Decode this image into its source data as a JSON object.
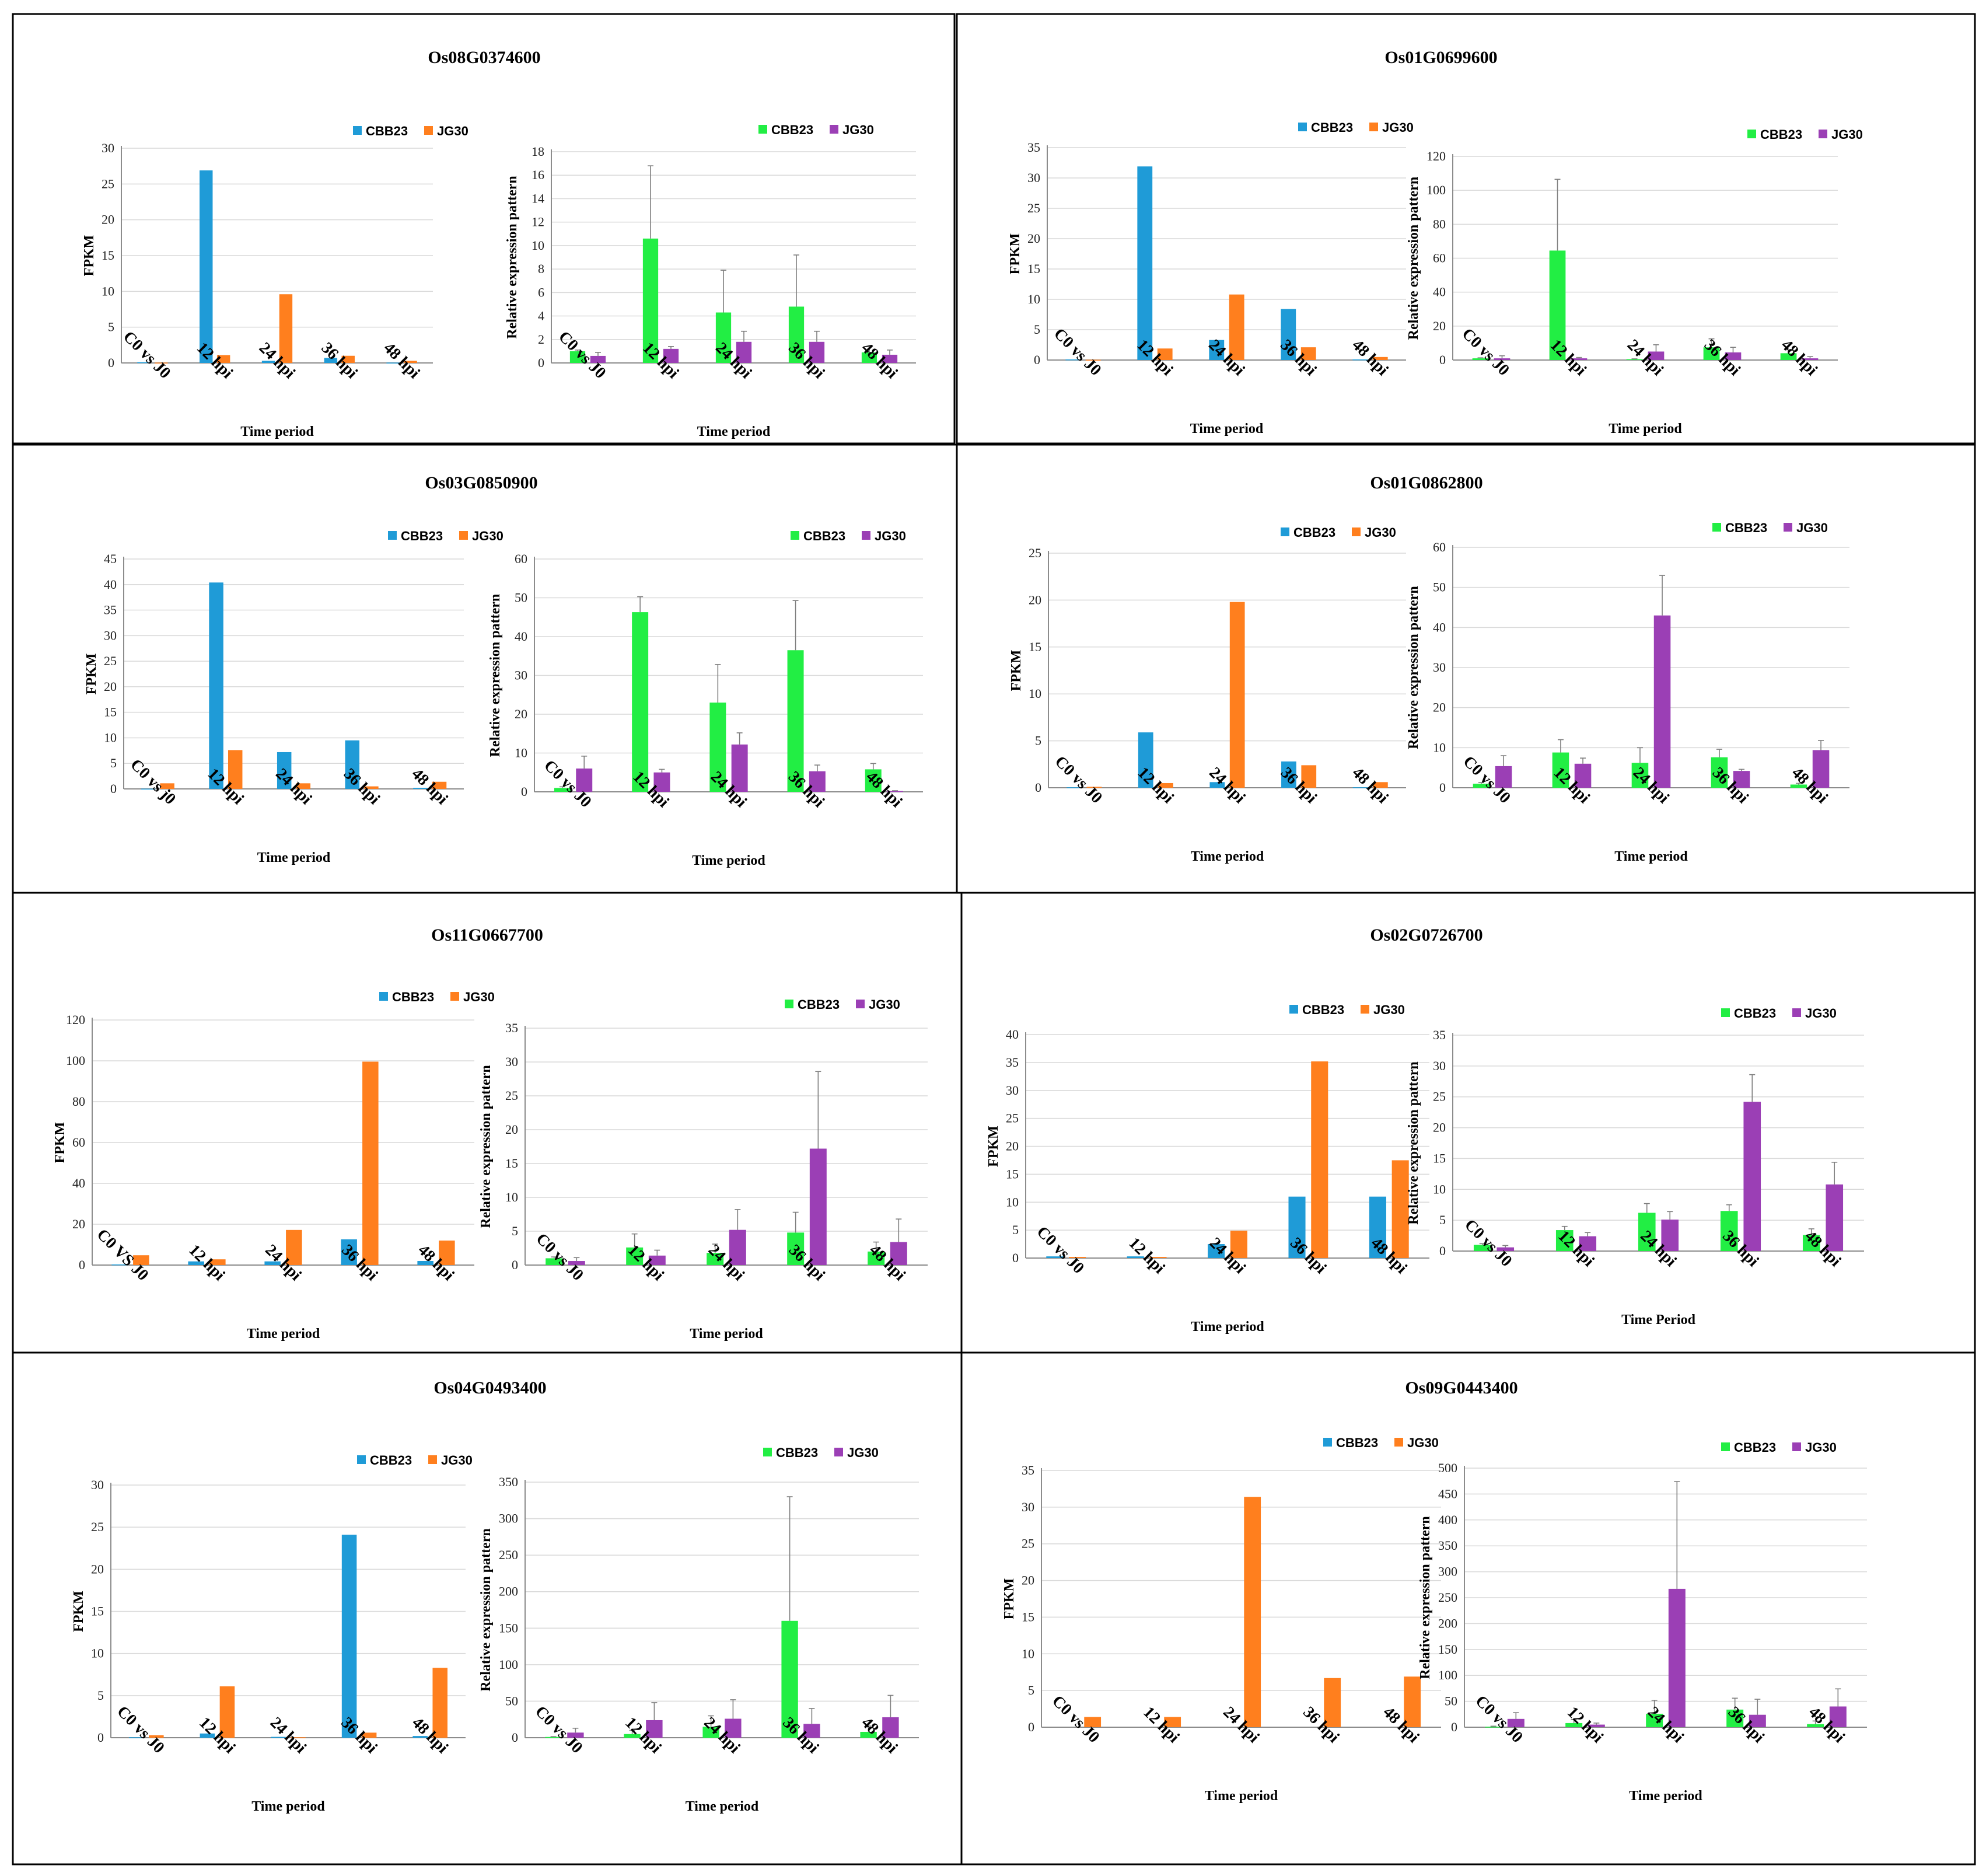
{
  "colors": {
    "cbb23_fpkm": "#1f9bd7",
    "jg30_fpkm": "#ff7f1e",
    "cbb23_rel": "#22ee44",
    "jg30_rel": "#9b3fb5"
  },
  "chart_data": [
    {
      "gene": "Os08G0374600",
      "fpkm": {
        "type": "bar",
        "title": "",
        "ylabel": "FPKM",
        "xlabel": "Time period",
        "ylim": [
          0,
          30
        ],
        "yticks": [
          0,
          5,
          10,
          15,
          20,
          25,
          30
        ],
        "categories": [
          "C0 vs J0",
          "12 hpi",
          "24 hpi",
          "36 hpi",
          "48 hpi"
        ],
        "series": [
          {
            "name": "CBB23",
            "values": [
              0.1,
              26.9,
              0.3,
              0.7,
              0.05
            ]
          },
          {
            "name": "JG30",
            "values": [
              0.05,
              1.1,
              9.6,
              1.0,
              0.3
            ]
          }
        ]
      },
      "rel": {
        "type": "bar",
        "title": "",
        "ylabel": "Relative expression pattern",
        "xlabel": "Time period",
        "ylim": [
          0,
          18
        ],
        "yticks": [
          0,
          2,
          4,
          6,
          8,
          10,
          12,
          14,
          16,
          18
        ],
        "categories": [
          "C0 vs J0",
          "12 hpi",
          "24 hpi",
          "36 hpi",
          "48 hpi"
        ],
        "series": [
          {
            "name": "CBB23",
            "values": [
              1.0,
              10.6,
              4.3,
              4.8,
              0.9
            ],
            "errors": [
              0.1,
              6.2,
              3.6,
              4.4,
              0.5
            ]
          },
          {
            "name": "JG30",
            "values": [
              0.6,
              1.2,
              1.8,
              1.8,
              0.7
            ],
            "errors": [
              0.3,
              0.2,
              0.9,
              0.9,
              0.4
            ]
          }
        ]
      }
    },
    {
      "gene": "Os01G0699600",
      "fpkm": {
        "type": "bar",
        "title": "",
        "ylabel": "FPKM",
        "xlabel": "Time period",
        "ylim": [
          0,
          35
        ],
        "yticks": [
          0,
          5,
          10,
          15,
          20,
          25,
          30,
          35
        ],
        "categories": [
          "C0 vs J0",
          "12 hpi",
          "24 hpi",
          "36 hpi",
          "48 hpi"
        ],
        "series": [
          {
            "name": "CBB23",
            "values": [
              0.1,
              31.9,
              3.3,
              8.4,
              0.1
            ]
          },
          {
            "name": "JG30",
            "values": [
              0.05,
              1.9,
              10.8,
              2.1,
              0.5
            ]
          }
        ]
      },
      "rel": {
        "type": "bar",
        "title": "",
        "ylabel": "Relative expression pattern",
        "xlabel": "Time period",
        "ylim": [
          0,
          120
        ],
        "yticks": [
          0,
          20,
          40,
          60,
          80,
          100,
          120
        ],
        "categories": [
          "C0 vs J0",
          "12 hpi",
          "24 hpi",
          "36 hpi",
          "48 hpi"
        ],
        "series": [
          {
            "name": "CBB23",
            "values": [
              1.0,
              64.5,
              0.5,
              7.5,
              4.0
            ],
            "errors": [
              0.3,
              42.0,
              0.2,
              5.0,
              2.0
            ]
          },
          {
            "name": "JG30",
            "values": [
              1.0,
              1.0,
              5.0,
              4.5,
              1.0
            ],
            "errors": [
              1.5,
              0.5,
              4.0,
              3.0,
              1.0
            ]
          }
        ]
      }
    },
    {
      "gene": "Os03G0850900",
      "fpkm": {
        "type": "bar",
        "title": "",
        "ylabel": "FPKM",
        "xlabel": "Time period",
        "ylim": [
          0,
          45
        ],
        "yticks": [
          0,
          5,
          10,
          15,
          20,
          25,
          30,
          35,
          40,
          45
        ],
        "categories": [
          "C0 vs j0",
          "12 hpi",
          "24 hpi",
          "36 hpi",
          "48 hpi"
        ],
        "series": [
          {
            "name": "CBB23",
            "values": [
              0.05,
              40.4,
              7.2,
              9.5,
              0.2
            ]
          },
          {
            "name": "JG30",
            "values": [
              1.1,
              7.6,
              1.1,
              0.5,
              1.4
            ]
          }
        ]
      },
      "rel": {
        "type": "bar",
        "title": "",
        "ylabel": "Relative expression pattern",
        "xlabel": "Time period",
        "ylim": [
          0,
          60
        ],
        "yticks": [
          0,
          10,
          20,
          30,
          40,
          50,
          60
        ],
        "categories": [
          "C0 vs J0",
          "12 hpi",
          "24 hpi",
          "36 hpi",
          "48 hpi"
        ],
        "series": [
          {
            "name": "CBB23",
            "values": [
              1.0,
              46.3,
              23.0,
              36.5,
              5.8
            ],
            "errors": [
              0.3,
              4.0,
              9.8,
              12.8,
              1.5
            ]
          },
          {
            "name": "JG30",
            "values": [
              6.0,
              5.0,
              12.2,
              5.3,
              0.2
            ],
            "errors": [
              3.2,
              0.8,
              3.0,
              1.6,
              0.1
            ]
          }
        ]
      }
    },
    {
      "gene": "Os01G0862800",
      "fpkm": {
        "type": "bar",
        "title": "",
        "ylabel": "FPKM",
        "xlabel": "Time period",
        "ylim": [
          0,
          25
        ],
        "yticks": [
          0,
          5,
          10,
          15,
          20,
          25
        ],
        "categories": [
          "C0 vs J0",
          "12 hpi",
          "24 hpi",
          "36 hpi",
          "48 hpi"
        ],
        "series": [
          {
            "name": "CBB23",
            "values": [
              0.05,
              5.9,
              0.6,
              2.8,
              0.05
            ]
          },
          {
            "name": "JG30",
            "values": [
              0.1,
              0.5,
              19.8,
              2.4,
              0.6
            ]
          }
        ]
      },
      "rel": {
        "type": "bar",
        "title": "",
        "ylabel": "Relative expression pattern",
        "xlabel": "Time period",
        "ylim": [
          0,
          60
        ],
        "yticks": [
          0,
          10,
          20,
          30,
          40,
          50,
          60
        ],
        "categories": [
          "C0 vs J0",
          "12 hpi",
          "24 hpi",
          "36 hpi",
          "48 hpi"
        ],
        "series": [
          {
            "name": "CBB23",
            "values": [
              1.0,
              8.8,
              6.2,
              7.6,
              0.8
            ],
            "errors": [
              0.3,
              3.2,
              3.8,
              2.0,
              0.3
            ]
          },
          {
            "name": "JG30",
            "values": [
              5.4,
              6.0,
              43.0,
              4.2,
              9.4
            ],
            "errors": [
              2.6,
              1.4,
              10.0,
              0.4,
              2.4
            ]
          }
        ]
      }
    },
    {
      "gene": "Os11G0667700",
      "fpkm": {
        "type": "bar",
        "title": "",
        "ylabel": "FPKM",
        "xlabel": "Time period",
        "ylim": [
          0,
          120
        ],
        "yticks": [
          0,
          20,
          40,
          60,
          80,
          100,
          120
        ],
        "categories": [
          "C0 VS J0",
          "12 hpi",
          "24 hpi",
          "36 hpi",
          "48 hpi"
        ],
        "series": [
          {
            "name": "CBB23",
            "values": [
              0.3,
              1.8,
              1.8,
              12.6,
              2.0
            ]
          },
          {
            "name": "JG30",
            "values": [
              4.8,
              2.8,
              17.2,
              99.6,
              12.0
            ]
          }
        ]
      },
      "rel": {
        "type": "bar",
        "title": "",
        "ylabel": "Relative expression pattern",
        "xlabel": "Time period",
        "ylim": [
          0,
          35
        ],
        "yticks": [
          0,
          5,
          10,
          15,
          20,
          25,
          30,
          35
        ],
        "categories": [
          "C0 vs J0",
          "12 hpi",
          "24 hpi",
          "36 hpi",
          "48 hpi"
        ],
        "series": [
          {
            "name": "CBB23",
            "values": [
              1.0,
              2.6,
              1.8,
              4.8,
              2.0
            ],
            "errors": [
              0.2,
              2.0,
              1.3,
              3.0,
              1.4
            ]
          },
          {
            "name": "JG30",
            "values": [
              0.6,
              1.4,
              5.2,
              17.2,
              3.4
            ],
            "errors": [
              0.5,
              0.8,
              3.0,
              11.4,
              3.4
            ]
          }
        ]
      }
    },
    {
      "gene": "Os02G0726700",
      "fpkm": {
        "type": "bar",
        "title": "",
        "ylabel": "FPKM",
        "xlabel": "Time period",
        "ylim": [
          0,
          40
        ],
        "yticks": [
          0,
          5,
          10,
          15,
          20,
          25,
          30,
          35,
          40
        ],
        "categories": [
          "C0 vs J0",
          "12 hpi",
          "24 hpi",
          "36 hpi",
          "48 hpi"
        ],
        "series": [
          {
            "name": "CBB23",
            "values": [
              0.3,
              0.3,
              2.5,
              11.0,
              11.0
            ]
          },
          {
            "name": "JG30",
            "values": [
              0.2,
              0.2,
              4.9,
              35.2,
              17.5
            ]
          }
        ]
      },
      "rel": {
        "type": "bar",
        "title": "",
        "ylabel": "Relative expression pattern",
        "xlabel": "Time Period",
        "ylim": [
          0,
          35
        ],
        "yticks": [
          0,
          5,
          10,
          15,
          20,
          25,
          30,
          35
        ],
        "categories": [
          "C0 vs J0",
          "12 hpi",
          "24 hpi",
          "36 hpi",
          "48 hpi"
        ],
        "series": [
          {
            "name": "CBB23",
            "values": [
              1.0,
              3.4,
              6.2,
              6.5,
              2.6
            ],
            "errors": [
              0.2,
              0.6,
              1.5,
              1.0,
              1.0
            ]
          },
          {
            "name": "JG30",
            "values": [
              0.6,
              2.4,
              5.1,
              24.2,
              10.8
            ],
            "errors": [
              0.3,
              0.6,
              1.3,
              4.4,
              3.6
            ]
          }
        ]
      }
    },
    {
      "gene": "Os04G0493400",
      "fpkm": {
        "type": "bar",
        "title": "",
        "ylabel": "FPKM",
        "xlabel": "Time period",
        "ylim": [
          0,
          30
        ],
        "yticks": [
          0,
          5,
          10,
          15,
          20,
          25,
          30
        ],
        "categories": [
          "C0 vs J0",
          "12 hpi",
          "24 hpi",
          "36 hpi",
          "48 hpi"
        ],
        "series": [
          {
            "name": "CBB23",
            "values": [
              0.05,
              0.5,
              0.1,
              24.1,
              0.2
            ]
          },
          {
            "name": "JG30",
            "values": [
              0.3,
              6.1,
              0.05,
              0.6,
              8.3
            ]
          }
        ]
      },
      "rel": {
        "type": "bar",
        "title": "",
        "ylabel": "Relative expression pattern",
        "xlabel": "Time period",
        "ylim": [
          0,
          350
        ],
        "yticks": [
          0,
          50,
          100,
          150,
          200,
          250,
          300,
          350
        ],
        "categories": [
          "C0 vs J0",
          "12 hpi",
          "24 hpi",
          "36 hpi",
          "48 hpi"
        ],
        "series": [
          {
            "name": "CBB23",
            "values": [
              1,
              5,
              15,
              160,
              8
            ],
            "errors": [
              0.5,
              5,
              15,
              170,
              8
            ]
          },
          {
            "name": "JG30",
            "values": [
              7,
              24,
              26,
              19,
              28
            ],
            "errors": [
              6,
              24,
              26,
              21,
              30
            ]
          }
        ]
      }
    },
    {
      "gene": "Os09G0443400",
      "fpkm": {
        "type": "bar",
        "title": "",
        "ylabel": "FPKM",
        "xlabel": "Time period",
        "ylim": [
          0,
          35
        ],
        "yticks": [
          0,
          5,
          10,
          15,
          20,
          25,
          30,
          35
        ],
        "categories": [
          "C0 vs J0",
          "12 hpi",
          "24 hpi",
          "36 hpi",
          "48 hpi"
        ],
        "series": [
          {
            "name": "CBB23",
            "values": [
              0,
              0,
              0,
              0,
              0
            ]
          },
          {
            "name": "JG30",
            "values": [
              1.4,
              1.4,
              31.4,
              6.7,
              6.9
            ]
          }
        ]
      },
      "rel": {
        "type": "bar",
        "title": "",
        "ylabel": "Relative expression pattern",
        "xlabel": "Time period",
        "ylim": [
          0,
          500
        ],
        "yticks": [
          0,
          50,
          100,
          150,
          200,
          250,
          300,
          350,
          400,
          450,
          500
        ],
        "categories": [
          "C0 vs J0",
          "12 hpi",
          "24 hpi",
          "36 hpi",
          "48 hpi"
        ],
        "series": [
          {
            "name": "CBB23",
            "values": [
              1,
              8,
              26,
              34,
              6
            ],
            "errors": [
              1,
              7,
              26,
              22,
              6
            ]
          },
          {
            "name": "JG30",
            "values": [
              16,
              5,
              267,
              24,
              40
            ],
            "errors": [
              12,
              3,
              207,
              30,
              34
            ]
          }
        ]
      }
    }
  ]
}
